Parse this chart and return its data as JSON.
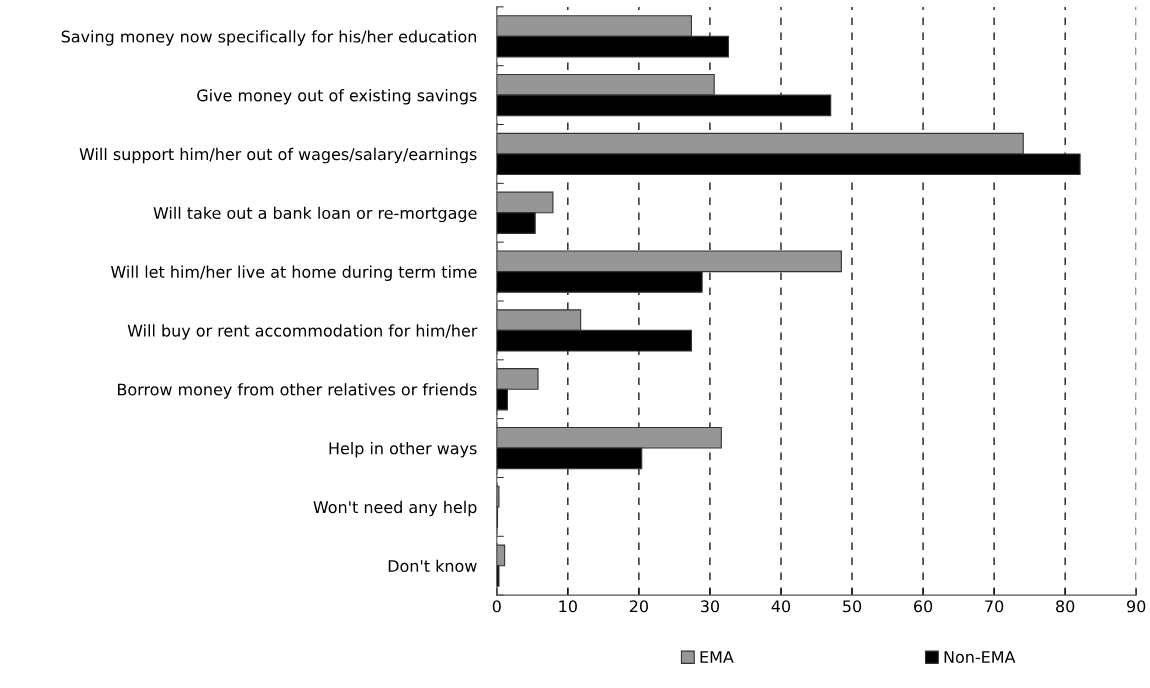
{
  "chart_data": {
    "type": "bar",
    "orientation": "horizontal",
    "categories": [
      "Saving money now specifically for his/her education",
      "Give money out of existing savings",
      "Will support him/her out of wages/salary/earnings",
      "Will take out a bank loan or re-mortgage",
      "Will let him/her live at home during term time",
      "Will buy or rent accommodation for him/her",
      "Borrow money from other relatives or friends",
      "Help in other ways",
      "Won't need any help",
      "Don't know"
    ],
    "series": [
      {
        "name": "EMA",
        "color": "#969696",
        "values": [
          27.4,
          30.6,
          74.1,
          7.9,
          48.5,
          11.8,
          5.8,
          31.6,
          0.3,
          1.1
        ]
      },
      {
        "name": "Non-EMA",
        "color": "#000000",
        "values": [
          32.6,
          47.0,
          82.1,
          5.4,
          28.9,
          27.4,
          1.5,
          20.4,
          0.1,
          0.3
        ]
      }
    ],
    "xlim": [
      0,
      90
    ],
    "xticks": [
      0,
      10,
      20,
      30,
      40,
      50,
      60,
      70,
      80,
      90
    ],
    "grid": "x",
    "legend": "bottom"
  }
}
